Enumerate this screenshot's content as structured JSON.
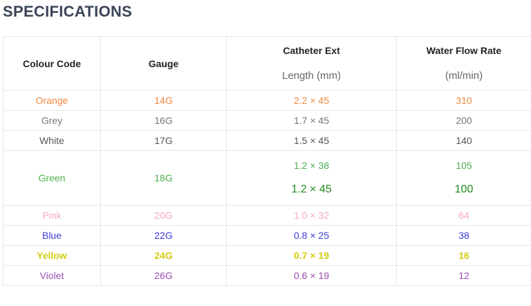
{
  "title": "SPECIFICATIONS",
  "table": {
    "header": [
      [
        "Colour Code"
      ],
      [
        "Gauge"
      ],
      [
        "Catheter Ext",
        "Length (mm)"
      ],
      [
        "Water Flow Rate",
        "(ml/min)"
      ]
    ],
    "rows": [
      {
        "colour": "Orange",
        "gauge": "14G",
        "size": [
          "2.2 × 45"
        ],
        "flow": [
          310
        ]
      },
      {
        "colour": "Grey",
        "gauge": "16G",
        "size": [
          "1.7 × 45"
        ],
        "flow": [
          200
        ]
      },
      {
        "colour": "White",
        "gauge": "17G",
        "size": [
          "1.5 × 45"
        ],
        "flow": [
          140
        ]
      },
      {
        "colour": "Green",
        "gauge": "18G",
        "size": [
          "1.2 × 38",
          "1.2 × 45"
        ],
        "flow": [
          105,
          100
        ]
      },
      {
        "colour": "Pink",
        "gauge": "20G",
        "size": [
          "1.0 × 32"
        ],
        "flow": [
          64
        ]
      },
      {
        "colour": "Blue",
        "gauge": "22G",
        "size": [
          "0.8 × 25"
        ],
        "flow": [
          38
        ]
      },
      {
        "colour": "Yellow",
        "gauge": "24G",
        "size": [
          "0.7 × 19"
        ],
        "flow": [
          16
        ]
      },
      {
        "colour": "Violet",
        "gauge": "26G",
        "size": [
          "0.6 × 19"
        ],
        "flow": [
          12
        ]
      }
    ]
  }
}
